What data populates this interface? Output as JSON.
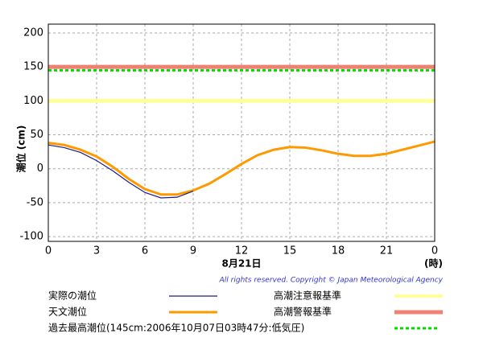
{
  "chart_data": {
    "type": "line",
    "y_label": "潮位 (cm)",
    "x_label": "8月21日",
    "x_unit": "(時)",
    "copyright": "All rights reserved. Copyright © Japan Meteorological Agency",
    "x": [
      0,
      1,
      2,
      3,
      4,
      5,
      6,
      7,
      8,
      9,
      10,
      11,
      12,
      13,
      14,
      15,
      16,
      17,
      18,
      19,
      20,
      21,
      22,
      23,
      24
    ],
    "series": [
      {
        "name": "実際の潮位",
        "color": "#1a1a8c",
        "values": [
          35,
          31,
          24,
          12,
          -3,
          -20,
          -35,
          -43,
          -42,
          -33,
          null,
          null,
          null,
          null,
          null,
          null,
          null,
          null,
          null,
          null,
          null,
          null,
          null,
          null,
          null
        ]
      },
      {
        "name": "天文潮位",
        "color": "#ff9900",
        "values": [
          38,
          35,
          28,
          18,
          3,
          -15,
          -30,
          -38,
          -38,
          -32,
          -22,
          -8,
          7,
          20,
          28,
          32,
          31,
          27,
          22,
          19,
          19,
          22,
          28,
          34,
          40
        ]
      }
    ],
    "reference_lines": [
      {
        "name": "高潮注意報基準",
        "value": 100,
        "color": "#ffff99",
        "dashed": false
      },
      {
        "name": "高潮警報基準",
        "value": 150,
        "color": "#f08070",
        "dashed": false
      },
      {
        "name": "過去最高潮位(145cm:2006年10月07日03時47分:低気圧)",
        "value": 145,
        "color": "#00dd00",
        "dashed": true
      }
    ],
    "xlim": [
      0,
      24
    ],
    "xticks": [
      0,
      3,
      6,
      9,
      12,
      15,
      18,
      21,
      {
        "value": 24,
        "label": "0"
      }
    ],
    "ylim": [
      -107,
      213
    ],
    "yticks": [
      -100,
      -50,
      0,
      50,
      100,
      150,
      200
    ],
    "grid": true
  }
}
